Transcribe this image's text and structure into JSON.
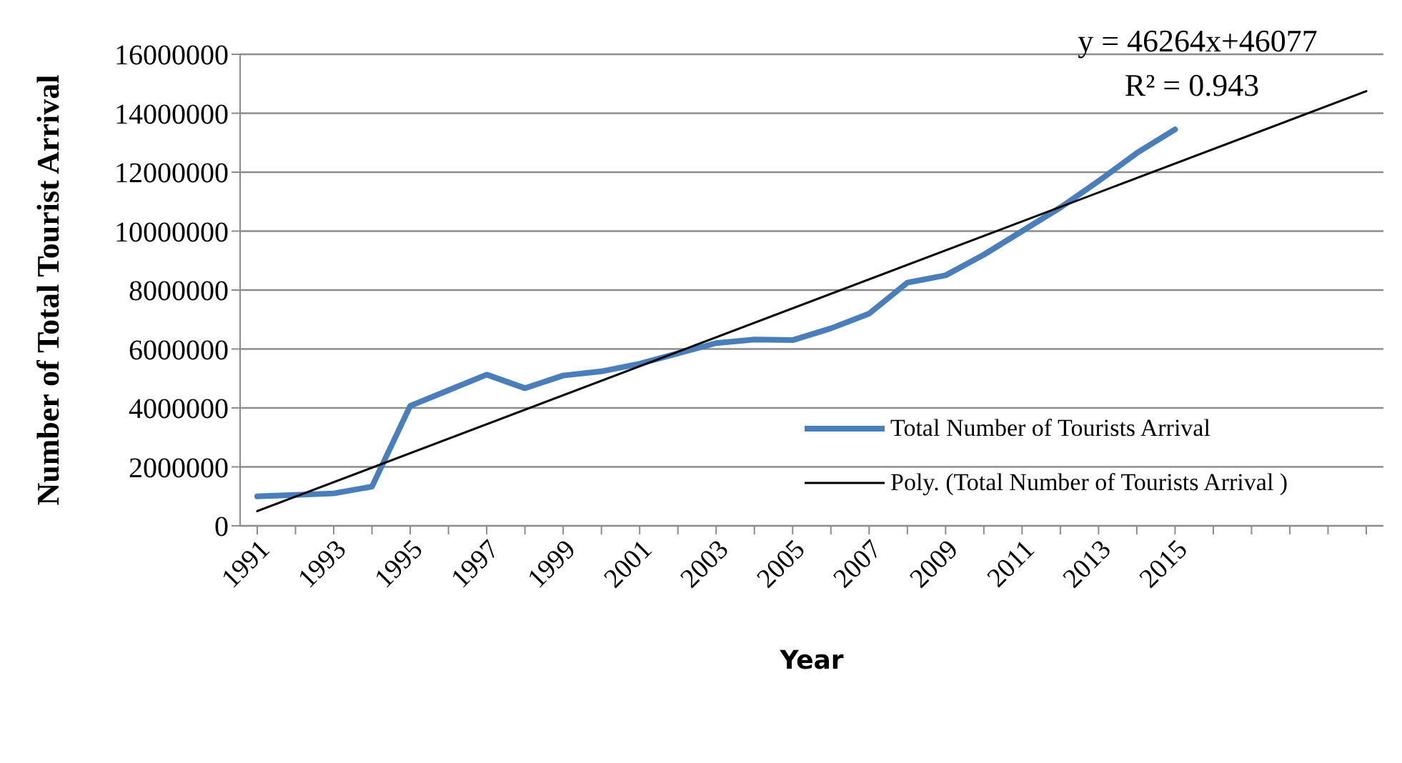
{
  "chart_data": {
    "type": "line",
    "xlabel": "Year",
    "ylabel": "Number of Total Tourist Arrival",
    "categories": [
      "1991",
      null,
      "1993",
      null,
      "1995",
      null,
      "1997",
      null,
      "1999",
      null,
      "2001",
      null,
      "2003",
      null,
      "2005",
      null,
      "2007",
      null,
      "2009",
      null,
      "2011",
      null,
      "2013",
      null,
      "2015",
      null,
      null,
      null,
      null,
      null
    ],
    "series": [
      {
        "name": "Total Number of Tourists Arrival",
        "color": "#4a7ebb",
        "values": [
          1000000,
          1050000,
          1100000,
          1330000,
          4070000,
          4600000,
          5130000,
          4670000,
          5100000,
          5240000,
          5500000,
          5850000,
          6200000,
          6320000,
          6300000,
          6700000,
          7200000,
          8250000,
          8500000,
          9200000,
          10000000,
          10800000,
          11700000,
          12650000,
          13450000,
          null,
          null,
          null,
          null,
          null
        ]
      },
      {
        "name": "Poly. (Total Number of Tourists Arrival )",
        "type": "line",
        "color": "#000000",
        "values": [
          500000,
          null,
          null,
          null,
          null,
          null,
          null,
          null,
          null,
          null,
          null,
          null,
          null,
          null,
          null,
          null,
          null,
          null,
          null,
          null,
          null,
          null,
          null,
          null,
          null,
          null,
          null,
          null,
          null,
          14750000
        ]
      }
    ],
    "ylim": [
      0,
      16000000
    ],
    "yticks": [
      0,
      2000000,
      4000000,
      6000000,
      8000000,
      10000000,
      12000000,
      14000000,
      16000000
    ],
    "grid": "y",
    "legend": "bottom right",
    "marker": "none",
    "annotations": [
      "y = 46264x+46077",
      "R² = 0.943"
    ]
  }
}
